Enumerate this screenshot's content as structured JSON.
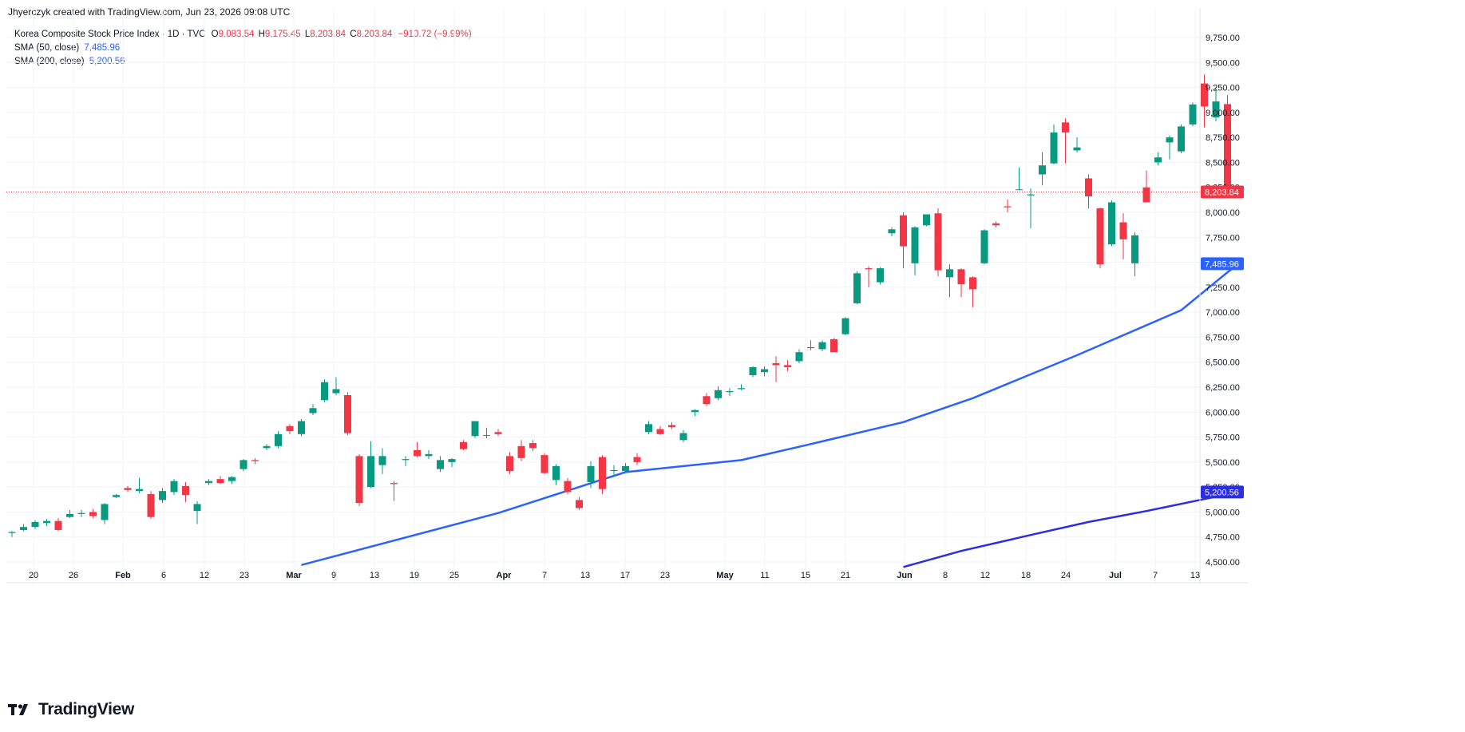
{
  "credit": "Jhyerczyk created with TradingView.com, Jun 23, 2026 09:08 UTC",
  "brand": {
    "name": "TradingView",
    "logo_icon": "tradingview-logo-icon"
  },
  "legend": {
    "symbol": "Korea Composite Stock Price Index · 1D · TVC",
    "o_label": "O",
    "o_value": "9,083.54",
    "h_label": "H",
    "h_value": "9,175.45",
    "l_label": "L",
    "l_value": "8,203.84",
    "c_label": "C",
    "c_value": "8,203.84",
    "change": "−910.72 (−9.99%)",
    "sma50_label": "SMA (50, close)",
    "sma50_value": "7,485.96",
    "sma200_label": "SMA (200, close)",
    "sma200_value": "5,200.56"
  },
  "colors": {
    "up": "#089981",
    "down": "#f23645",
    "sma50": "#2962ff",
    "sma200": "#2a2ee0",
    "grid": "#f0f3fa",
    "axis_text": "#131722"
  },
  "chart_data": {
    "type": "candlestick",
    "y_ticks": [
      "4,500.00",
      "4,750.00",
      "5,000.00",
      "5,250.00",
      "5,500.00",
      "5,750.00",
      "6,000.00",
      "6,250.00",
      "6,500.00",
      "6,750.00",
      "7,000.00",
      "7,250.00",
      "7,500.00",
      "7,750.00",
      "8,000.00",
      "8,250.00",
      "8,500.00",
      "8,750.00",
      "9,000.00",
      "9,250.00",
      "9,500.00",
      "9,750.00"
    ],
    "ylim": [
      4440,
      9990
    ],
    "x_ticks": [
      "20",
      "26",
      "Feb",
      "6",
      "12",
      "23",
      "Mar",
      "9",
      "13",
      "19",
      "25",
      "Apr",
      "7",
      "13",
      "17",
      "23",
      "May",
      "11",
      "15",
      "21",
      "Jun",
      "8",
      "12",
      "18",
      "24",
      "Jul",
      "7",
      "13"
    ],
    "price_labels": [
      {
        "text": "8,203.84",
        "value": 8203.84,
        "color": "#f23645"
      },
      {
        "text": "7,485.96",
        "value": 7485.96,
        "color": "#2962ff"
      },
      {
        "text": "5,200.56",
        "value": 5200.56,
        "color": "#2a2ee0"
      }
    ],
    "candles": [
      {
        "o": 4790,
        "h": 4810,
        "l": 4750,
        "c": 4800
      },
      {
        "o": 4820,
        "h": 4880,
        "l": 4810,
        "c": 4850
      },
      {
        "o": 4850,
        "h": 4920,
        "l": 4830,
        "c": 4900
      },
      {
        "o": 4890,
        "h": 4930,
        "l": 4860,
        "c": 4910
      },
      {
        "o": 4910,
        "h": 4940,
        "l": 4810,
        "c": 4820
      },
      {
        "o": 4950,
        "h": 5020,
        "l": 4940,
        "c": 4980
      },
      {
        "o": 4980,
        "h": 5020,
        "l": 4950,
        "c": 4990
      },
      {
        "o": 5000,
        "h": 5030,
        "l": 4940,
        "c": 4960
      },
      {
        "o": 4920,
        "h": 5090,
        "l": 4880,
        "c": 5080
      },
      {
        "o": 5150,
        "h": 5180,
        "l": 5140,
        "c": 5170
      },
      {
        "o": 5240,
        "h": 5260,
        "l": 5200,
        "c": 5220
      },
      {
        "o": 5210,
        "h": 5340,
        "l": 5190,
        "c": 5230
      },
      {
        "o": 5180,
        "h": 5210,
        "l": 4930,
        "c": 4950
      },
      {
        "o": 5120,
        "h": 5240,
        "l": 5090,
        "c": 5210
      },
      {
        "o": 5200,
        "h": 5330,
        "l": 5170,
        "c": 5310
      },
      {
        "o": 5260,
        "h": 5300,
        "l": 5100,
        "c": 5170
      },
      {
        "o": 5010,
        "h": 5110,
        "l": 4880,
        "c": 5080
      },
      {
        "o": 5290,
        "h": 5330,
        "l": 5270,
        "c": 5310
      },
      {
        "o": 5330,
        "h": 5360,
        "l": 5280,
        "c": 5290
      },
      {
        "o": 5310,
        "h": 5360,
        "l": 5280,
        "c": 5350
      },
      {
        "o": 5430,
        "h": 5530,
        "l": 5410,
        "c": 5520
      },
      {
        "o": 5520,
        "h": 5540,
        "l": 5480,
        "c": 5510
      },
      {
        "o": 5640,
        "h": 5680,
        "l": 5620,
        "c": 5660
      },
      {
        "o": 5660,
        "h": 5810,
        "l": 5640,
        "c": 5780
      },
      {
        "o": 5860,
        "h": 5880,
        "l": 5780,
        "c": 5810
      },
      {
        "o": 5780,
        "h": 5930,
        "l": 5760,
        "c": 5910
      },
      {
        "o": 5990,
        "h": 6080,
        "l": 5970,
        "c": 6040
      },
      {
        "o": 6120,
        "h": 6330,
        "l": 6100,
        "c": 6300
      },
      {
        "o": 6190,
        "h": 6350,
        "l": 6170,
        "c": 6230
      },
      {
        "o": 6170,
        "h": 6200,
        "l": 5770,
        "c": 5790
      },
      {
        "o": 5560,
        "h": 5580,
        "l": 5060,
        "c": 5090
      },
      {
        "o": 5250,
        "h": 5710,
        "l": 5240,
        "c": 5560
      },
      {
        "o": 5470,
        "h": 5640,
        "l": 5380,
        "c": 5560
      },
      {
        "o": 5290,
        "h": 5310,
        "l": 5110,
        "c": 5280
      },
      {
        "o": 5520,
        "h": 5560,
        "l": 5460,
        "c": 5530
      },
      {
        "o": 5620,
        "h": 5700,
        "l": 5550,
        "c": 5560
      },
      {
        "o": 5560,
        "h": 5620,
        "l": 5530,
        "c": 5580
      },
      {
        "o": 5430,
        "h": 5560,
        "l": 5400,
        "c": 5520
      },
      {
        "o": 5500,
        "h": 5540,
        "l": 5450,
        "c": 5530
      },
      {
        "o": 5700,
        "h": 5720,
        "l": 5620,
        "c": 5630
      },
      {
        "o": 5760,
        "h": 5910,
        "l": 5740,
        "c": 5910
      },
      {
        "o": 5770,
        "h": 5840,
        "l": 5740,
        "c": 5770
      },
      {
        "o": 5800,
        "h": 5830,
        "l": 5760,
        "c": 5780
      },
      {
        "o": 5560,
        "h": 5600,
        "l": 5380,
        "c": 5410
      },
      {
        "o": 5660,
        "h": 5720,
        "l": 5510,
        "c": 5540
      },
      {
        "o": 5690,
        "h": 5720,
        "l": 5610,
        "c": 5640
      },
      {
        "o": 5570,
        "h": 5590,
        "l": 5380,
        "c": 5390
      },
      {
        "o": 5320,
        "h": 5480,
        "l": 5270,
        "c": 5460
      },
      {
        "o": 5310,
        "h": 5340,
        "l": 5180,
        "c": 5200
      },
      {
        "o": 5120,
        "h": 5150,
        "l": 5020,
        "c": 5040
      },
      {
        "o": 5300,
        "h": 5510,
        "l": 5240,
        "c": 5460
      },
      {
        "o": 5550,
        "h": 5570,
        "l": 5180,
        "c": 5230
      },
      {
        "o": 5410,
        "h": 5470,
        "l": 5350,
        "c": 5420
      },
      {
        "o": 5410,
        "h": 5490,
        "l": 5390,
        "c": 5460
      },
      {
        "o": 5550,
        "h": 5590,
        "l": 5470,
        "c": 5500
      },
      {
        "o": 5800,
        "h": 5910,
        "l": 5780,
        "c": 5880
      },
      {
        "o": 5830,
        "h": 5860,
        "l": 5770,
        "c": 5780
      },
      {
        "o": 5870,
        "h": 5900,
        "l": 5830,
        "c": 5850
      },
      {
        "o": 5720,
        "h": 5820,
        "l": 5700,
        "c": 5790
      },
      {
        "o": 6000,
        "h": 6030,
        "l": 5960,
        "c": 6020
      },
      {
        "o": 6160,
        "h": 6190,
        "l": 6060,
        "c": 6080
      },
      {
        "o": 6140,
        "h": 6260,
        "l": 6120,
        "c": 6220
      },
      {
        "o": 6200,
        "h": 6240,
        "l": 6160,
        "c": 6210
      },
      {
        "o": 6230,
        "h": 6280,
        "l": 6220,
        "c": 6240
      },
      {
        "o": 6370,
        "h": 6460,
        "l": 6350,
        "c": 6450
      },
      {
        "o": 6400,
        "h": 6460,
        "l": 6360,
        "c": 6430
      },
      {
        "o": 6490,
        "h": 6560,
        "l": 6300,
        "c": 6470
      },
      {
        "o": 6470,
        "h": 6520,
        "l": 6410,
        "c": 6450
      },
      {
        "o": 6510,
        "h": 6630,
        "l": 6490,
        "c": 6600
      },
      {
        "o": 6650,
        "h": 6720,
        "l": 6620,
        "c": 6640
      },
      {
        "o": 6630,
        "h": 6720,
        "l": 6610,
        "c": 6700
      },
      {
        "o": 6730,
        "h": 6740,
        "l": 6600,
        "c": 6600
      },
      {
        "o": 6780,
        "h": 6950,
        "l": 6770,
        "c": 6940
      },
      {
        "o": 7090,
        "h": 7410,
        "l": 7080,
        "c": 7390
      },
      {
        "o": 7440,
        "h": 7460,
        "l": 7250,
        "c": 7430
      },
      {
        "o": 7300,
        "h": 7450,
        "l": 7280,
        "c": 7440
      },
      {
        "o": 7790,
        "h": 7850,
        "l": 7760,
        "c": 7830
      },
      {
        "o": 7970,
        "h": 8000,
        "l": 7440,
        "c": 7660
      },
      {
        "o": 7490,
        "h": 7860,
        "l": 7370,
        "c": 7850
      },
      {
        "o": 7870,
        "h": 7980,
        "l": 7860,
        "c": 7980
      },
      {
        "o": 7990,
        "h": 8040,
        "l": 7360,
        "c": 7420
      },
      {
        "o": 7350,
        "h": 7480,
        "l": 7150,
        "c": 7430
      },
      {
        "o": 7430,
        "h": 7440,
        "l": 7150,
        "c": 7280
      },
      {
        "o": 7350,
        "h": 7360,
        "l": 7050,
        "c": 7230
      },
      {
        "o": 7490,
        "h": 7830,
        "l": 7480,
        "c": 7820
      },
      {
        "o": 7890,
        "h": 7910,
        "l": 7850,
        "c": 7870
      },
      {
        "o": 8060,
        "h": 8130,
        "l": 8000,
        "c": 8050
      },
      {
        "o": 8230,
        "h": 8450,
        "l": 8220,
        "c": 8230
      },
      {
        "o": 8170,
        "h": 8240,
        "l": 7840,
        "c": 8180
      },
      {
        "o": 8380,
        "h": 8600,
        "l": 8270,
        "c": 8470
      },
      {
        "o": 8490,
        "h": 8880,
        "l": 8480,
        "c": 8800
      },
      {
        "o": 8900,
        "h": 8940,
        "l": 8490,
        "c": 8800
      },
      {
        "o": 8620,
        "h": 8750,
        "l": 8600,
        "c": 8650
      },
      {
        "o": 8340,
        "h": 8380,
        "l": 8040,
        "c": 8160
      },
      {
        "o": 8040,
        "h": 8050,
        "l": 7440,
        "c": 7480
      },
      {
        "o": 7680,
        "h": 8120,
        "l": 7660,
        "c": 8100
      },
      {
        "o": 7900,
        "h": 7990,
        "l": 7530,
        "c": 7730
      },
      {
        "o": 7490,
        "h": 7800,
        "l": 7360,
        "c": 7770
      },
      {
        "o": 8250,
        "h": 8420,
        "l": 8100,
        "c": 8100
      },
      {
        "o": 8500,
        "h": 8600,
        "l": 8470,
        "c": 8550
      },
      {
        "o": 8700,
        "h": 8770,
        "l": 8530,
        "c": 8750
      },
      {
        "o": 8610,
        "h": 8880,
        "l": 8590,
        "c": 8860
      },
      {
        "o": 8880,
        "h": 9100,
        "l": 8860,
        "c": 9080
      },
      {
        "o": 9290,
        "h": 9380,
        "l": 8850,
        "c": 9060
      },
      {
        "o": 8950,
        "h": 9250,
        "l": 8910,
        "c": 9110
      },
      {
        "o": 9083.54,
        "h": 9175.45,
        "l": 8203.84,
        "c": 8203.84
      }
    ],
    "sma50": {
      "name": "SMA (50, close)",
      "x": [
        25,
        42,
        53,
        63,
        69,
        77,
        83,
        92,
        101,
        105,
        106
      ],
      "y": [
        4470,
        4990,
        5400,
        5520,
        5680,
        5900,
        6140,
        6570,
        7020,
        7400,
        7485.96
      ]
    },
    "sma200": {
      "name": "SMA (200, close)",
      "x": [
        77,
        82,
        88,
        93,
        98,
        103,
        106
      ],
      "y": [
        4450,
        4610,
        4770,
        4900,
        5010,
        5130,
        5200.56
      ]
    }
  }
}
